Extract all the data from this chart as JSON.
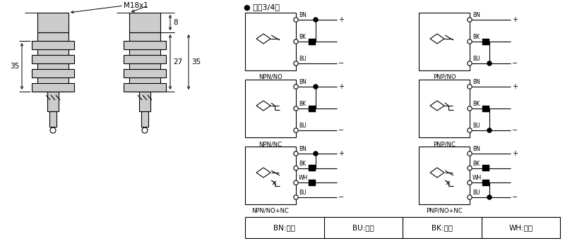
{
  "bg_color": "#ffffff",
  "line_color": "#000000",
  "gray_fill": "#cccccc",
  "title_dc": "● 直涁3/4线",
  "dim_M18x1": "M18x1",
  "dim_8": "8",
  "dim_35a": "35",
  "dim_27": "27",
  "dim_35b": "35",
  "color_labels": [
    "BN:棕色",
    "BU:兰色",
    "BK:黑色",
    "WH:白色"
  ]
}
